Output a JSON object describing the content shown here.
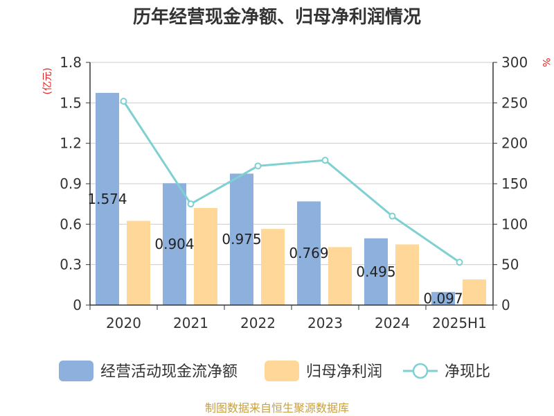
{
  "chart_data": {
    "type": "bar",
    "title": "历年经营现金净额、归母净利润情况",
    "categories": [
      "2020",
      "2021",
      "2022",
      "2023",
      "2024",
      "2025H1"
    ],
    "series": [
      {
        "name": "经营活动现金流净额",
        "type": "bar",
        "axis": "left",
        "color": "#8eb0dc",
        "values": [
          1.574,
          0.904,
          0.975,
          0.769,
          0.495,
          0.097
        ],
        "labels": [
          "1.574",
          "0.904",
          "0.975",
          "0.769",
          "0.495",
          "0.097"
        ]
      },
      {
        "name": "归母净利润",
        "type": "bar",
        "axis": "left",
        "color": "#ffd899",
        "values": [
          0.625,
          0.72,
          0.565,
          0.43,
          0.45,
          0.19
        ]
      },
      {
        "name": "净现比",
        "type": "line",
        "axis": "right",
        "color": "#7ed0d2",
        "values": [
          252,
          125,
          172,
          179,
          110,
          53
        ]
      }
    ],
    "y_left": {
      "unit": "(亿元)",
      "ylim": [
        0,
        1.8
      ],
      "ticks": [
        "0",
        "0.3",
        "0.6",
        "0.9",
        "1.2",
        "1.5",
        "1.8"
      ]
    },
    "y_right": {
      "unit": "%",
      "ylim": [
        0,
        300
      ],
      "ticks": [
        "0",
        "50",
        "100",
        "150",
        "200",
        "250",
        "300"
      ]
    },
    "grid": true,
    "legend_position": "bottom",
    "source": "制图数据来自恒生聚源数据库",
    "colors": {
      "title": "#333333",
      "axis_unit": "#e02020",
      "source_text": "#c8a040",
      "grid": "#cccccc"
    }
  }
}
